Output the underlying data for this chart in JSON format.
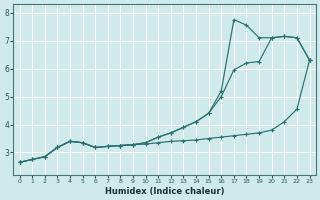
{
  "title": "",
  "xlabel": "Humidex (Indice chaleur)",
  "ylabel": "",
  "bg_color": "#d0eaec",
  "grid_color": "#ffffff",
  "line_color": "#2a7070",
  "xlim": [
    -0.5,
    23.5
  ],
  "ylim": [
    2.2,
    8.3
  ],
  "xticks": [
    0,
    1,
    2,
    3,
    4,
    5,
    6,
    7,
    8,
    9,
    10,
    11,
    12,
    13,
    14,
    15,
    16,
    17,
    18,
    19,
    20,
    21,
    22,
    23
  ],
  "yticks": [
    3,
    4,
    5,
    6,
    7,
    8
  ],
  "line1_x": [
    0,
    1,
    2,
    3,
    4,
    5,
    6,
    7,
    8,
    9,
    10,
    11,
    12,
    13,
    14,
    15,
    16,
    17,
    18,
    19,
    20,
    21,
    22,
    23
  ],
  "line1_y": [
    2.65,
    2.75,
    2.85,
    3.18,
    3.4,
    3.35,
    3.18,
    3.22,
    3.25,
    3.28,
    3.3,
    3.35,
    3.4,
    3.42,
    3.45,
    3.5,
    3.55,
    3.6,
    3.65,
    3.7,
    3.8,
    4.1,
    4.55,
    6.3
  ],
  "line2_x": [
    0,
    1,
    2,
    3,
    4,
    5,
    6,
    7,
    8,
    9,
    10,
    11,
    12,
    13,
    14,
    15,
    16,
    17,
    18,
    19,
    20,
    21,
    22,
    23
  ],
  "line2_y": [
    2.65,
    2.75,
    2.85,
    3.18,
    3.4,
    3.35,
    3.18,
    3.22,
    3.25,
    3.28,
    3.35,
    3.55,
    3.7,
    3.9,
    4.1,
    4.4,
    5.0,
    5.95,
    6.2,
    6.25,
    7.1,
    7.15,
    7.1,
    6.3
  ],
  "line3_x": [
    0,
    1,
    2,
    3,
    4,
    5,
    6,
    7,
    8,
    9,
    10,
    11,
    12,
    13,
    14,
    15,
    16,
    17,
    18,
    19,
    20,
    21,
    22,
    23
  ],
  "line3_y": [
    2.65,
    2.75,
    2.85,
    3.18,
    3.4,
    3.35,
    3.18,
    3.22,
    3.25,
    3.28,
    3.35,
    3.55,
    3.7,
    3.9,
    4.1,
    4.4,
    5.2,
    7.75,
    7.55,
    7.1,
    7.1,
    7.15,
    7.1,
    6.3
  ]
}
